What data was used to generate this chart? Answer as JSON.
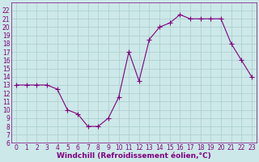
{
  "x": [
    0,
    1,
    2,
    3,
    4,
    5,
    6,
    7,
    8,
    9,
    10,
    11,
    12,
    13,
    14,
    15,
    16,
    17,
    18,
    19,
    20,
    21,
    22,
    23
  ],
  "y": [
    13,
    13,
    13,
    13,
    12.5,
    10,
    9.5,
    8,
    8,
    9,
    11.5,
    17,
    13.5,
    18.5,
    20,
    20.5,
    21.5,
    21,
    21,
    21,
    21,
    18,
    16,
    14
  ],
  "line_color": "#800080",
  "marker": "+",
  "marker_size": 4,
  "marker_linewidth": 0.8,
  "line_width": 0.8,
  "bg_color": "#cce8e8",
  "grid_color": "#aacccc",
  "xlabel": "Windchill (Refroidissement éolien,°C)",
  "xlabel_color": "#800080",
  "xlabel_fontsize": 6.5,
  "ylim": [
    6,
    23
  ],
  "xlim": [
    -0.5,
    23.5
  ],
  "yticks": [
    8,
    9,
    10,
    11,
    12,
    13,
    14,
    15,
    16,
    17,
    18,
    19,
    20,
    21,
    22
  ],
  "ytick_labels": [
    "8",
    "9",
    "10",
    "11",
    "12",
    "13",
    "14",
    "15",
    "16",
    "17",
    "18",
    "19",
    "20",
    "21",
    "22"
  ],
  "xticks": [
    0,
    1,
    2,
    3,
    4,
    5,
    6,
    7,
    8,
    9,
    10,
    11,
    12,
    13,
    14,
    15,
    16,
    17,
    18,
    19,
    20,
    21,
    22,
    23
  ],
  "tick_fontsize": 5.5,
  "tick_color": "#800080",
  "spine_color": "#800080",
  "left_yticks": [
    6,
    7,
    8,
    9,
    10,
    11,
    12,
    13,
    14,
    15,
    16,
    17,
    18,
    19,
    20,
    21,
    22
  ],
  "left_ytick_labels": [
    "6",
    "7",
    "8",
    "9",
    "10",
    "11",
    "12",
    "13",
    "14",
    "15",
    "16",
    "17",
    "18",
    "19",
    "20",
    "21",
    "22"
  ]
}
